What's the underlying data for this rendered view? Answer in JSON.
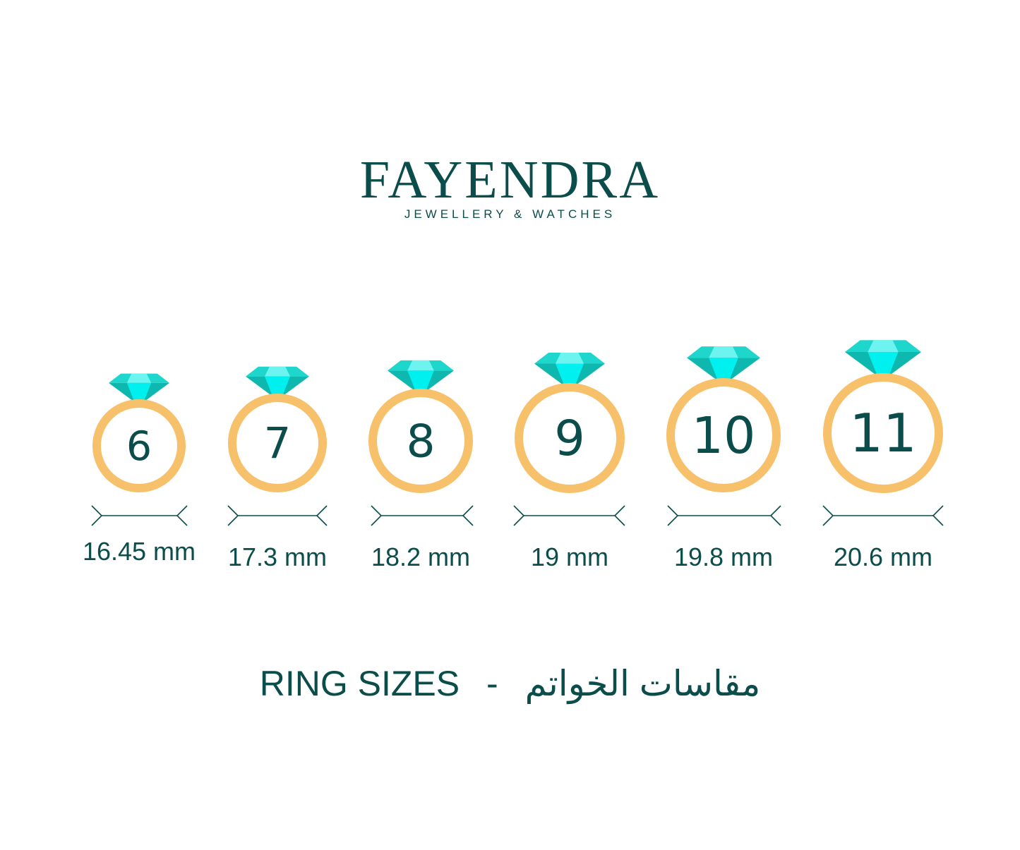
{
  "brand": {
    "name": "FAYENDRA",
    "tagline": "JEWELLERY & WATCHES"
  },
  "rings": [
    {
      "size": "6",
      "diameter": "16.45 mm"
    },
    {
      "size": "7",
      "diameter": "17.3 mm"
    },
    {
      "size": "8",
      "diameter": "18.2 mm"
    },
    {
      "size": "9",
      "diameter": "19 mm"
    },
    {
      "size": "10",
      "diameter": "19.8 mm"
    },
    {
      "size": "11",
      "diameter": "20.6 mm"
    }
  ],
  "footer": {
    "title_en": "RING SIZES",
    "separator": "-",
    "title_ar": "مقاسات الخواتم"
  },
  "colors": {
    "text": "#0b4d4a",
    "ring": "#f7c06a",
    "gem_light": "#1fd6cc",
    "gem_bright": "#00f0f0",
    "gem_dark": "#0fb8ae"
  }
}
